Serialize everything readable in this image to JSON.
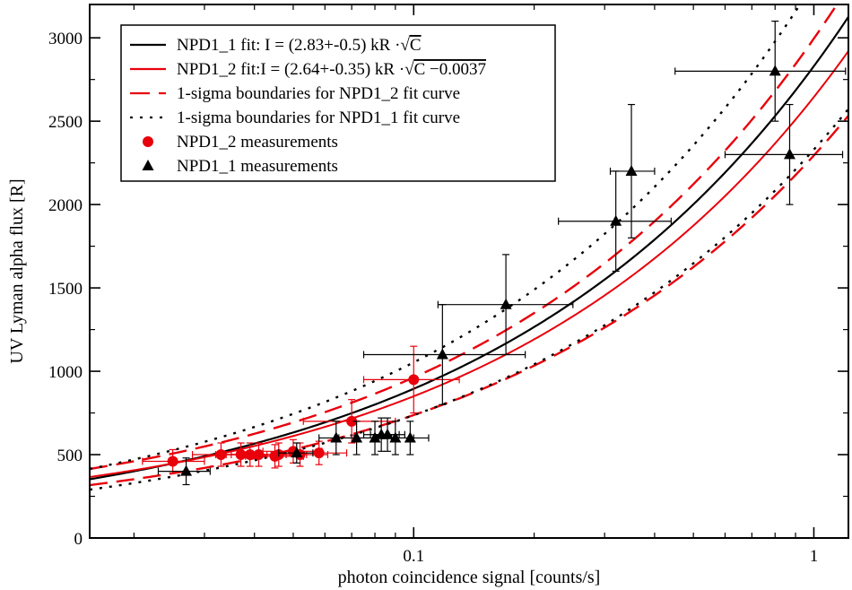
{
  "chart_data": {
    "type": "scatter",
    "xlabel": "photon coincidence signal [counts/s]",
    "ylabel": "UV Lyman alpha flux [R]",
    "xscale": "log",
    "xlim": [
      0.0155,
      1.22
    ],
    "ylim": [
      0,
      3200
    ],
    "grid": false,
    "legend_position": "top-left",
    "x_ticks": [
      {
        "value": 0.1,
        "label": "0.1"
      },
      {
        "value": 1,
        "label": "1"
      }
    ],
    "x_minor_ticks": [
      0.02,
      0.03,
      0.04,
      0.05,
      0.06,
      0.07,
      0.08,
      0.09,
      0.2,
      0.3,
      0.4,
      0.5,
      0.6,
      0.7,
      0.8,
      0.9
    ],
    "y_ticks": [
      {
        "value": 0,
        "label": "0"
      },
      {
        "value": 500,
        "label": "500"
      },
      {
        "value": 1000,
        "label": "1000"
      },
      {
        "value": 1500,
        "label": "1500"
      },
      {
        "value": 2000,
        "label": "2000"
      },
      {
        "value": 2500,
        "label": "2500"
      },
      {
        "value": 3000,
        "label": "3000"
      }
    ],
    "legend": [
      {
        "label_pre": "NPD1_1 fit: I = (2.83+-0.5) kR ·",
        "label_root": "C",
        "label_post": "",
        "style": "solid",
        "color": "#000000"
      },
      {
        "label_pre": "NPD1_2 fit:I = (2.64+-0.35) kR ·",
        "label_root": "C −0.0037",
        "label_post": "",
        "style": "solid",
        "color": "#e8000b"
      },
      {
        "label_pre": "1-sigma boundaries for NPD1_2 fit curve",
        "label_root": "",
        "label_post": "",
        "style": "dashed",
        "color": "#e8000b"
      },
      {
        "label_pre": "1-sigma boundaries for NPD1_1 fit curve",
        "label_root": "",
        "label_post": "",
        "style": "dotted",
        "color": "#000000"
      },
      {
        "label_pre": "NPD1_2 measurements",
        "label_root": "",
        "label_post": "",
        "style": "circle",
        "color": "#e8000b"
      },
      {
        "label_pre": "NPD1_1 measurements",
        "label_root": "",
        "label_post": "",
        "style": "triangle",
        "color": "#000000"
      }
    ],
    "curves": [
      {
        "name": "NPD1_1 fit",
        "coef": 2830,
        "offset": 0,
        "color": "#000000",
        "style": "solid",
        "width": 2.2
      },
      {
        "name": "NPD1_2 fit",
        "coef": 2640,
        "offset": 0.0037,
        "color": "#e8000b",
        "style": "solid",
        "width": 2
      },
      {
        "name": "NPD1_2 upper",
        "coef": 2990,
        "offset": 0.0037,
        "color": "#e8000b",
        "style": "dashed",
        "width": 2.4
      },
      {
        "name": "NPD1_2 lower",
        "coef": 2290,
        "offset": 0.0037,
        "color": "#e8000b",
        "style": "dashed",
        "width": 2.4
      },
      {
        "name": "NPD1_1 upper",
        "coef": 3330,
        "offset": 0,
        "color": "#000000",
        "style": "dotted",
        "width": 2.4
      },
      {
        "name": "NPD1_1 lower",
        "coef": 2330,
        "offset": 0,
        "color": "#000000",
        "style": "dotted",
        "width": 2.4
      }
    ],
    "series": [
      {
        "name": "NPD1_2 measurements",
        "marker": "circle",
        "color": "#e8000b",
        "points": [
          {
            "x": 0.025,
            "y": 460,
            "xerr": [
              0.021,
              0.03
            ],
            "yerr": 70
          },
          {
            "x": 0.033,
            "y": 500,
            "xerr": [
              0.028,
              0.039
            ],
            "yerr": 70
          },
          {
            "x": 0.037,
            "y": 500,
            "xerr": [
              0.032,
              0.043
            ],
            "yerr": 70
          },
          {
            "x": 0.039,
            "y": 500,
            "xerr": [
              0.034,
              0.045
            ],
            "yerr": 70
          },
          {
            "x": 0.041,
            "y": 500,
            "xerr": [
              0.035,
              0.048
            ],
            "yerr": 70
          },
          {
            "x": 0.045,
            "y": 490,
            "xerr": [
              0.038,
              0.053
            ],
            "yerr": 70
          },
          {
            "x": 0.046,
            "y": 500,
            "xerr": [
              0.039,
              0.054
            ],
            "yerr": 70
          },
          {
            "x": 0.05,
            "y": 520,
            "xerr": [
              0.042,
              0.059
            ],
            "yerr": 70
          },
          {
            "x": 0.052,
            "y": 500,
            "xerr": [
              0.044,
              0.061
            ],
            "yerr": 70
          },
          {
            "x": 0.058,
            "y": 510,
            "xerr": [
              0.049,
              0.068
            ],
            "yerr": 70
          },
          {
            "x": 0.07,
            "y": 700,
            "xerr": [
              0.053,
              0.09
            ],
            "yerr": 130
          },
          {
            "x": 0.1,
            "y": 950,
            "xerr": [
              0.075,
              0.13
            ],
            "yerr": 200
          }
        ]
      },
      {
        "name": "NPD1_1 measurements",
        "marker": "triangle",
        "color": "#000000",
        "points": [
          {
            "x": 0.027,
            "y": 400,
            "xerr": [
              0.023,
              0.031
            ],
            "yerr": 80
          },
          {
            "x": 0.051,
            "y": 510,
            "xerr": [
              0.046,
              0.056
            ],
            "yerr": 60
          },
          {
            "x": 0.064,
            "y": 600,
            "xerr": [
              0.058,
              0.071
            ],
            "yerr": 100
          },
          {
            "x": 0.072,
            "y": 600,
            "xerr": [
              0.065,
              0.08
            ],
            "yerr": 100
          },
          {
            "x": 0.08,
            "y": 600,
            "xerr": [
              0.072,
              0.088
            ],
            "yerr": 100
          },
          {
            "x": 0.083,
            "y": 620,
            "xerr": [
              0.075,
              0.092
            ],
            "yerr": 100
          },
          {
            "x": 0.086,
            "y": 620,
            "xerr": [
              0.078,
              0.095
            ],
            "yerr": 100
          },
          {
            "x": 0.09,
            "y": 600,
            "xerr": [
              0.081,
              0.1
            ],
            "yerr": 100
          },
          {
            "x": 0.098,
            "y": 600,
            "xerr": [
              0.088,
              0.109
            ],
            "yerr": 100
          },
          {
            "x": 0.118,
            "y": 1100,
            "xerr": [
              0.075,
              0.19
            ],
            "yerr": 300
          },
          {
            "x": 0.17,
            "y": 1400,
            "xerr": [
              0.115,
              0.25
            ],
            "yerr": 300
          },
          {
            "x": 0.32,
            "y": 1900,
            "xerr": [
              0.23,
              0.44
            ],
            "yerr": 300
          },
          {
            "x": 0.35,
            "y": 2200,
            "xerr": [
              0.31,
              0.4
            ],
            "yerr": 400
          },
          {
            "x": 0.8,
            "y": 2800,
            "xerr": [
              0.45,
              1.2
            ],
            "yerr": 300
          },
          {
            "x": 0.87,
            "y": 2300,
            "xerr": [
              0.6,
              1.18
            ],
            "yerr": 300
          }
        ]
      }
    ]
  }
}
